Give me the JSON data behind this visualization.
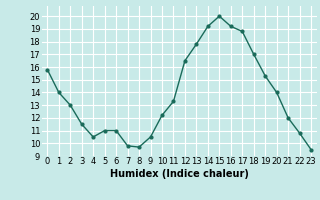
{
  "x": [
    0,
    1,
    2,
    3,
    4,
    5,
    6,
    7,
    8,
    9,
    10,
    11,
    12,
    13,
    14,
    15,
    16,
    17,
    18,
    19,
    20,
    21,
    22,
    23
  ],
  "y": [
    15.8,
    14.0,
    13.0,
    11.5,
    10.5,
    11.0,
    11.0,
    9.8,
    9.7,
    10.5,
    12.2,
    13.3,
    16.5,
    17.8,
    19.2,
    20.0,
    19.2,
    18.8,
    17.0,
    15.3,
    14.0,
    12.0,
    10.8,
    9.5
  ],
  "line_color": "#1a6b5a",
  "marker": "o",
  "markersize": 2.0,
  "linewidth": 1.0,
  "background_color": "#c8eae8",
  "grid_color": "#ffffff",
  "xlabel": "Humidex (Indice chaleur)",
  "xlabel_fontsize": 7,
  "tick_fontsize": 6,
  "xlim": [
    -0.5,
    23.5
  ],
  "ylim": [
    9,
    20.8
  ],
  "yticks": [
    9,
    10,
    11,
    12,
    13,
    14,
    15,
    16,
    17,
    18,
    19,
    20
  ],
  "xticks": [
    0,
    1,
    2,
    3,
    4,
    5,
    6,
    7,
    8,
    9,
    10,
    11,
    12,
    13,
    14,
    15,
    16,
    17,
    18,
    19,
    20,
    21,
    22,
    23
  ]
}
